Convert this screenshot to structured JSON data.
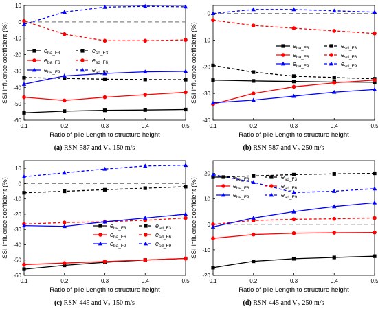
{
  "figure": {
    "panels": [
      {
        "id": "a",
        "caption": {
          "label": "(a)",
          "text": "RSN-587 and Vₛ-150 m/s"
        },
        "chart_data": {
          "type": "line",
          "xlabel": "Ratio of pile Length to structure height",
          "ylabel": "SSI influence coefficient (%)",
          "xlim": [
            0.1,
            0.5
          ],
          "ylim": [
            -60,
            10
          ],
          "xticks": [
            "0.1",
            "0.2",
            "0.3",
            "0.4",
            "0.5"
          ],
          "yticks": [
            "-60",
            "-50",
            "-40",
            "-30",
            "-20",
            "-10",
            "0",
            "10"
          ],
          "legend_position": "top-left",
          "grid": false,
          "x": [
            0.1,
            0.2,
            0.3,
            0.4,
            0.5
          ],
          "series": [
            {
              "name": "e_ba_F3",
              "sub": "ba_F3",
              "color": "#000000",
              "style": "solid",
              "marker": "square",
              "values": [
                -55.5,
                -54.5,
                -54.0,
                -53.8,
                -53.5
              ]
            },
            {
              "name": "e_sd_F3",
              "sub": "sd_F3",
              "color": "#000000",
              "style": "dashed",
              "marker": "square",
              "values": [
                -34.0,
                -34.5,
                -35.0,
                -35.2,
                -35.3
              ]
            },
            {
              "name": "e_ba_F6",
              "sub": "ba_F6",
              "color": "#ff0000",
              "style": "solid",
              "marker": "circle",
              "values": [
                -46.0,
                -48.0,
                -46.0,
                -44.5,
                -43.0
              ]
            },
            {
              "name": "e_sd_F6",
              "sub": "sd_F6",
              "color": "#ff0000",
              "style": "dashed",
              "marker": "circle",
              "values": [
                0.5,
                -7.5,
                -11.5,
                -11.5,
                -11.0
              ]
            },
            {
              "name": "e_ba_F9",
              "sub": "ba_F9",
              "color": "#0000ff",
              "style": "solid",
              "marker": "triangle",
              "values": [
                -38.0,
                -33.0,
                -31.5,
                -30.5,
                -30.2
              ]
            },
            {
              "name": "e_sd_F9",
              "sub": "sd_F9",
              "color": "#0000ff",
              "style": "dashed",
              "marker": "triangle",
              "values": [
                -1.5,
                6.0,
                9.0,
                9.5,
                9.2
              ]
            }
          ]
        }
      },
      {
        "id": "b",
        "caption": {
          "label": "(b)",
          "text": "RSN-587 and Vₛ-250 m/s"
        },
        "chart_data": {
          "type": "line",
          "xlabel": "Ratio of pile Length to structure height",
          "ylabel": "SSI influence coefficient (%)",
          "xlim": [
            0.1,
            0.5
          ],
          "ylim": [
            -40,
            3
          ],
          "xticks": [
            "0.1",
            "0.2",
            "0.3",
            "0.4",
            "0.5"
          ],
          "yticks": [
            "-40",
            "-30",
            "-20",
            "-10",
            "0"
          ],
          "legend_position": "center-right",
          "grid": false,
          "x": [
            0.1,
            0.2,
            0.3,
            0.4,
            0.5
          ],
          "series": [
            {
              "name": "e_ba_F3",
              "sub": "ba_F3",
              "color": "#000000",
              "style": "solid",
              "marker": "square",
              "values": [
                -25.0,
                -25.3,
                -25.5,
                -25.7,
                -25.8
              ]
            },
            {
              "name": "e_sd_F3",
              "sub": "sd_F3",
              "color": "#000000",
              "style": "dashed",
              "marker": "square",
              "values": [
                -19.5,
                -22.0,
                -23.5,
                -24.0,
                -24.5
              ]
            },
            {
              "name": "e_ba_F6",
              "sub": "ba_F6",
              "color": "#ff0000",
              "style": "solid",
              "marker": "circle",
              "values": [
                -34.0,
                -30.0,
                -27.5,
                -26.0,
                -25.0
              ]
            },
            {
              "name": "e_sd_F6",
              "sub": "sd_F6",
              "color": "#ff0000",
              "style": "dashed",
              "marker": "circle",
              "values": [
                -2.5,
                -4.5,
                -5.5,
                -6.5,
                -7.5
              ]
            },
            {
              "name": "e_ba_F9",
              "sub": "ba_F9",
              "color": "#0000ff",
              "style": "solid",
              "marker": "triangle",
              "values": [
                -33.5,
                -32.5,
                -31.0,
                -29.5,
                -28.5
              ]
            },
            {
              "name": "e_sd_F9",
              "sub": "sd_F9",
              "color": "#0000ff",
              "style": "dashed",
              "marker": "triangle",
              "values": [
                0.0,
                1.5,
                1.5,
                1.0,
                0.5
              ]
            }
          ]
        }
      },
      {
        "id": "c",
        "caption": {
          "label": "(c)",
          "text": "RSN-445 and Vₛ-150 m/s"
        },
        "chart_data": {
          "type": "line",
          "xlabel": "Ratio of pile Length to structure height",
          "ylabel": "SSI influence coefficient (%)",
          "xlim": [
            0.1,
            0.5
          ],
          "ylim": [
            -60,
            15
          ],
          "xticks": [
            "0.1",
            "0.2",
            "0.3",
            "0.4",
            "0.5"
          ],
          "yticks": [
            "-60",
            "-50",
            "-40",
            "-30",
            "-20",
            "-10",
            "0",
            "10"
          ],
          "legend_position": "center-right",
          "grid": false,
          "x": [
            0.1,
            0.2,
            0.3,
            0.4,
            0.5
          ],
          "series": [
            {
              "name": "e_ba_F3",
              "sub": "ba_F3",
              "color": "#000000",
              "style": "solid",
              "marker": "square",
              "values": [
                -56.0,
                -53.5,
                -51.5,
                -50.0,
                -49.0
              ]
            },
            {
              "name": "e_sd_F3",
              "sub": "sd_F3",
              "color": "#000000",
              "style": "dashed",
              "marker": "square",
              "values": [
                -6.0,
                -5.0,
                -4.0,
                -3.0,
                -2.0
              ]
            },
            {
              "name": "e_ba_F6",
              "sub": "ba_F6",
              "color": "#ff0000",
              "style": "solid",
              "marker": "circle",
              "values": [
                -53.0,
                -52.0,
                -51.0,
                -50.0,
                -49.0
              ]
            },
            {
              "name": "e_sd_F6",
              "sub": "sd_F6",
              "color": "#ff0000",
              "style": "dashed",
              "marker": "circle",
              "values": [
                -26.5,
                -25.5,
                -25.0,
                -24.0,
                -22.5
              ]
            },
            {
              "name": "e_ba_F9",
              "sub": "ba_F9",
              "color": "#0000ff",
              "style": "solid",
              "marker": "triangle",
              "values": [
                -27.5,
                -28.0,
                -25.0,
                -22.5,
                -20.0
              ]
            },
            {
              "name": "e_sd_F9",
              "sub": "sd_F9",
              "color": "#0000ff",
              "style": "dashed",
              "marker": "triangle",
              "values": [
                4.5,
                7.0,
                9.5,
                11.5,
                12.0
              ]
            }
          ]
        }
      },
      {
        "id": "d",
        "caption": {
          "label": "(d)",
          "text": "RSN-445 and Vₛ-250 m/s"
        },
        "chart_data": {
          "type": "line",
          "xlabel": "Ratio of pile Length to structure height",
          "ylabel": "SSI influence coefficient (%)",
          "xlim": [
            0.1,
            0.5
          ],
          "ylim": [
            -20,
            25
          ],
          "xticks": [
            "0.1",
            "0.2",
            "0.3",
            "0.4",
            "0.5"
          ],
          "yticks": [
            "-20",
            "-10",
            "0",
            "10",
            "20"
          ],
          "legend_position": "top-left",
          "grid": false,
          "x": [
            0.1,
            0.2,
            0.3,
            0.4,
            0.5
          ],
          "series": [
            {
              "name": "e_ba_F3",
              "sub": "ba_F3",
              "color": "#000000",
              "style": "solid",
              "marker": "square",
              "values": [
                -17.0,
                -14.5,
                -13.5,
                -13.0,
                -12.5
              ]
            },
            {
              "name": "e_sd_F3",
              "sub": "sd_F3",
              "color": "#000000",
              "style": "dashed",
              "marker": "square",
              "values": [
                18.5,
                19.0,
                19.5,
                19.8,
                20.0
              ]
            },
            {
              "name": "e_ba_F6",
              "sub": "ba_F6",
              "color": "#ff0000",
              "style": "solid",
              "marker": "circle",
              "values": [
                -5.5,
                -4.0,
                -3.5,
                -3.3,
                -3.2
              ]
            },
            {
              "name": "e_sd_F6",
              "sub": "sd_F6",
              "color": "#ff0000",
              "style": "dashed",
              "marker": "circle",
              "values": [
                0.0,
                1.5,
                2.0,
                2.2,
                2.5
              ]
            },
            {
              "name": "e_ba_F9",
              "sub": "ba_F9",
              "color": "#0000ff",
              "style": "solid",
              "marker": "triangle",
              "values": [
                -1.0,
                2.5,
                5.0,
                7.0,
                8.5
              ]
            },
            {
              "name": "e_sd_F9",
              "sub": "sd_F9",
              "color": "#0000ff",
              "style": "dashed",
              "marker": "triangle",
              "values": [
                19.5,
                16.5,
                12.5,
                13.0,
                14.0
              ]
            }
          ]
        }
      }
    ]
  }
}
